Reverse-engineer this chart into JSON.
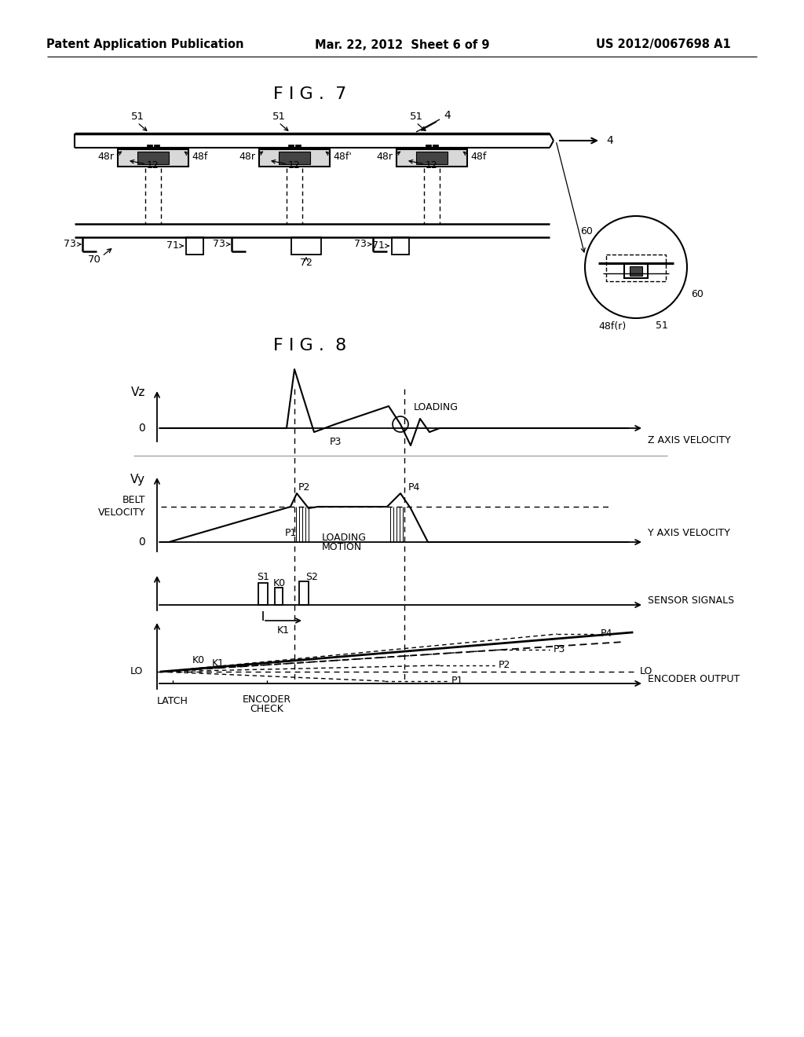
{
  "page_header_left": "Patent Application Publication",
  "page_header_center": "Mar. 22, 2012  Sheet 6 of 9",
  "page_header_right": "US 2012/0067698 A1",
  "fig7_title": "F I G .  7",
  "fig8_title": "F I G .  8",
  "bg_color": "#ffffff",
  "header_fontsize": 10.5,
  "title_fontsize": 16
}
